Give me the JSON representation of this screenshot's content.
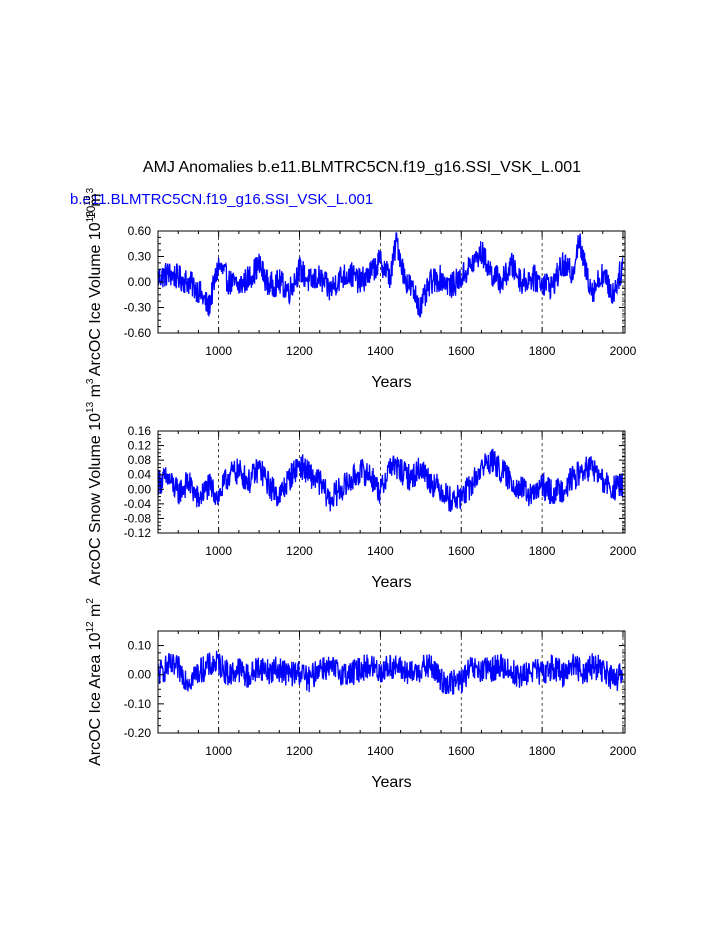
{
  "figure": {
    "title": "AMJ Anomalies b.e11.BLMTRC5CN.f19_g16.SSI_VSK_L.001",
    "subtitle": "b.e11.BLMTRC5CN.f19_g16.SSI_VSK_L.001",
    "subtitle_color": "#0000ff",
    "line_color": "#0000ff"
  },
  "chart_data": [
    {
      "type": "line",
      "ylabel": "ArcOC Ice Volume 10",
      "ylabel_sup": "13",
      "ylabel_unit": " m",
      "ylabel_unit_sup": "3",
      "ylabel_overlap": "10",
      "ylabel_overlap_sup": "13",
      "xlabel": "Years",
      "xlim": [
        850,
        2005
      ],
      "ylim": [
        -0.6,
        0.6
      ],
      "xticks": [
        1000,
        1200,
        1400,
        1600,
        1800,
        2000
      ],
      "yticks": [
        "0.60",
        "0.30",
        "0.00",
        "-0.30",
        "-0.60"
      ],
      "ytick_values": [
        0.6,
        0.3,
        0.0,
        -0.3,
        -0.6
      ],
      "grid": "vertical dashed at labeled x ticks",
      "series": [
        {
          "x": [
            850,
            875,
            900,
            925,
            950,
            975,
            1000,
            1025,
            1050,
            1075,
            1100,
            1125,
            1150,
            1175,
            1200,
            1225,
            1250,
            1275,
            1300,
            1325,
            1350,
            1375,
            1400,
            1425,
            1440,
            1460,
            1480,
            1500,
            1525,
            1550,
            1575,
            1600,
            1625,
            1650,
            1675,
            1700,
            1725,
            1750,
            1775,
            1800,
            1825,
            1850,
            1875,
            1890,
            1910,
            1925,
            1950,
            1975,
            2000
          ],
          "values": [
            0.05,
            0.1,
            0.05,
            0.0,
            -0.1,
            -0.3,
            0.2,
            0.0,
            -0.05,
            0.05,
            0.2,
            -0.05,
            0.0,
            -0.1,
            0.15,
            0.0,
            0.05,
            -0.1,
            0.05,
            0.1,
            0.0,
            0.1,
            0.25,
            0.05,
            0.5,
            0.05,
            -0.1,
            -0.3,
            0.0,
            0.05,
            -0.05,
            0.05,
            0.2,
            0.35,
            0.1,
            0.0,
            0.2,
            0.0,
            0.05,
            0.0,
            -0.05,
            0.2,
            0.1,
            0.5,
            0.1,
            -0.1,
            0.1,
            -0.15,
            0.2
          ]
        }
      ]
    },
    {
      "type": "line",
      "ylabel": "ArcOC Snow Volume 10",
      "ylabel_sup": "13",
      "ylabel_unit": " m",
      "ylabel_unit_sup": "3",
      "xlabel": "Years",
      "xlim": [
        850,
        2005
      ],
      "ylim": [
        -0.12,
        0.16
      ],
      "xticks": [
        1000,
        1200,
        1400,
        1600,
        1800,
        2000
      ],
      "yticks": [
        "0.16",
        "0.12",
        "0.08",
        "0.04",
        "0.00",
        "-0.04",
        "-0.08",
        "-0.12"
      ],
      "ytick_values": [
        0.16,
        0.12,
        0.08,
        0.04,
        0.0,
        -0.04,
        -0.08,
        -0.12
      ],
      "grid": "vertical dashed at labeled x ticks",
      "series": [
        {
          "x": [
            850,
            875,
            900,
            925,
            950,
            975,
            1000,
            1025,
            1050,
            1075,
            1100,
            1125,
            1150,
            1175,
            1200,
            1225,
            1250,
            1275,
            1300,
            1325,
            1350,
            1375,
            1400,
            1425,
            1450,
            1475,
            1500,
            1525,
            1550,
            1575,
            1600,
            1625,
            1650,
            1675,
            1700,
            1725,
            1750,
            1775,
            1800,
            1825,
            1850,
            1875,
            1900,
            1925,
            1950,
            1975,
            2000
          ],
          "values": [
            0.02,
            0.03,
            -0.01,
            0.02,
            -0.03,
            0.01,
            -0.02,
            0.04,
            0.05,
            0.02,
            0.06,
            0.01,
            -0.02,
            0.03,
            0.07,
            0.04,
            0.02,
            -0.03,
            0.0,
            0.02,
            0.05,
            0.04,
            -0.01,
            0.07,
            0.05,
            0.03,
            0.06,
            0.02,
            0.0,
            -0.03,
            -0.02,
            0.01,
            0.06,
            0.08,
            0.05,
            0.02,
            0.0,
            -0.02,
            0.01,
            -0.01,
            0.0,
            0.03,
            0.05,
            0.06,
            0.02,
            0.0,
            0.01
          ]
        }
      ]
    },
    {
      "type": "line",
      "ylabel": "ArcOC Ice Area 10",
      "ylabel_sup": "12",
      "ylabel_unit": " m",
      "ylabel_unit_sup": "2",
      "xlabel": "Years",
      "xlim": [
        850,
        2005
      ],
      "ylim": [
        -0.2,
        0.15
      ],
      "xticks": [
        1000,
        1200,
        1400,
        1600,
        1800,
        2000
      ],
      "yticks": [
        "0.10",
        "0.00",
        "-0.10",
        "-0.20"
      ],
      "ytick_values": [
        0.1,
        0.0,
        -0.1,
        -0.2
      ],
      "grid": "vertical dashed at labeled x ticks",
      "series": [
        {
          "x": [
            850,
            875,
            900,
            925,
            950,
            975,
            1000,
            1025,
            1050,
            1075,
            1100,
            1125,
            1150,
            1175,
            1200,
            1225,
            1250,
            1275,
            1300,
            1325,
            1350,
            1375,
            1400,
            1425,
            1450,
            1475,
            1500,
            1525,
            1550,
            1575,
            1600,
            1625,
            1650,
            1675,
            1700,
            1725,
            1750,
            1775,
            1800,
            1825,
            1850,
            1875,
            1900,
            1925,
            1950,
            1975,
            2000
          ],
          "values": [
            0.0,
            0.03,
            0.02,
            -0.02,
            0.01,
            0.03,
            0.04,
            0.0,
            0.02,
            -0.01,
            0.03,
            0.01,
            0.02,
            0.0,
            0.01,
            -0.02,
            0.03,
            0.02,
            0.01,
            0.0,
            0.02,
            0.03,
            0.01,
            0.03,
            0.02,
            0.0,
            0.02,
            0.03,
            -0.02,
            -0.03,
            -0.02,
            0.02,
            0.01,
            0.02,
            0.03,
            0.01,
            -0.01,
            0.02,
            0.0,
            0.03,
            0.0,
            0.04,
            0.01,
            0.03,
            0.02,
            -0.02,
            0.0
          ]
        }
      ]
    }
  ]
}
